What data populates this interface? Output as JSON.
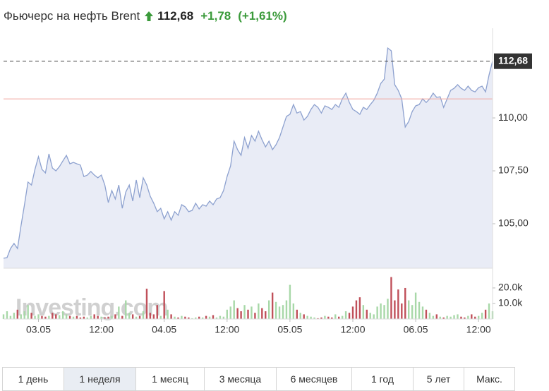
{
  "chart_data": {
    "type": "area",
    "title": "Фьючерс на нефть Brent",
    "last_price": {
      "value": 112.68,
      "label": "112,68"
    },
    "change": "+1,78",
    "change_pct": "(+1,61%)",
    "prev_close": 110.9,
    "color": "#8da1cf",
    "fill": "#e9ecf6",
    "watermark": "Investing.com",
    "xlim": [
      -400,
      5200
    ],
    "xticks": [
      {
        "value": 0,
        "label": "03.05"
      },
      {
        "value": 720,
        "label": "12:00"
      },
      {
        "value": 1440,
        "label": "04.05"
      },
      {
        "value": 2160,
        "label": "12:00"
      },
      {
        "value": 2880,
        "label": "05.05"
      },
      {
        "value": 3600,
        "label": "12:00"
      },
      {
        "value": 4320,
        "label": "06.05"
      },
      {
        "value": 5040,
        "label": "12:00"
      }
    ],
    "ylim": [
      102.9,
      114.07
    ],
    "yticks": [
      {
        "value": 105,
        "label": "105,00"
      },
      {
        "value": 107.5,
        "label": "107,50"
      },
      {
        "value": 110,
        "label": "110,00"
      }
    ],
    "x": [
      -400,
      -360,
      -320,
      -280,
      -240,
      -200,
      -160,
      -120,
      -80,
      -40,
      0,
      40,
      80,
      120,
      160,
      200,
      240,
      280,
      320,
      360,
      400,
      440,
      480,
      520,
      560,
      600,
      640,
      680,
      720,
      760,
      800,
      840,
      880,
      920,
      960,
      1000,
      1040,
      1080,
      1120,
      1160,
      1200,
      1240,
      1280,
      1320,
      1360,
      1400,
      1440,
      1480,
      1520,
      1560,
      1600,
      1640,
      1680,
      1720,
      1760,
      1800,
      1840,
      1880,
      1920,
      1960,
      2000,
      2040,
      2080,
      2120,
      2160,
      2200,
      2240,
      2280,
      2320,
      2360,
      2400,
      2440,
      2480,
      2520,
      2560,
      2600,
      2640,
      2680,
      2720,
      2760,
      2800,
      2840,
      2880,
      2920,
      2960,
      3000,
      3040,
      3080,
      3120,
      3160,
      3200,
      3240,
      3280,
      3320,
      3360,
      3400,
      3440,
      3480,
      3520,
      3560,
      3600,
      3640,
      3680,
      3720,
      3760,
      3800,
      3840,
      3880,
      3920,
      3960,
      4000,
      4040,
      4080,
      4120,
      4160,
      4200,
      4240,
      4280,
      4320,
      4360,
      4400,
      4440,
      4480,
      4520,
      4560,
      4600,
      4640,
      4680,
      4720,
      4760,
      4800,
      4840,
      4880,
      4920,
      4960,
      5000,
      5040,
      5080,
      5120,
      5160,
      5200
    ],
    "values": [
      103.37,
      103.4,
      103.83,
      104.07,
      103.83,
      104.9,
      105.9,
      106.97,
      106.83,
      107.57,
      108.17,
      107.57,
      107.4,
      108.3,
      107.63,
      107.5,
      107.7,
      107.97,
      108.23,
      107.83,
      107.9,
      107.83,
      107.77,
      107.23,
      107.3,
      107.47,
      107.3,
      107.17,
      107.3,
      106.83,
      106.0,
      106.57,
      106.17,
      106.83,
      105.73,
      106.5,
      106.83,
      106.07,
      107.07,
      106.23,
      107.17,
      106.83,
      106.3,
      105.97,
      105.57,
      105.73,
      105.23,
      105.57,
      105.17,
      105.57,
      105.4,
      105.9,
      105.8,
      105.57,
      105.63,
      105.97,
      105.7,
      105.9,
      105.83,
      106.07,
      105.9,
      106.17,
      106.23,
      106.57,
      107.23,
      107.73,
      108.9,
      108.5,
      108.23,
      109.07,
      108.57,
      109.17,
      108.9,
      109.37,
      108.97,
      108.63,
      108.9,
      108.5,
      108.73,
      109.07,
      109.57,
      110.07,
      110.17,
      110.63,
      110.23,
      110.3,
      109.9,
      110.07,
      110.4,
      110.63,
      110.5,
      110.23,
      110.57,
      110.5,
      110.4,
      110.63,
      110.5,
      110.9,
      111.17,
      110.73,
      110.4,
      110.3,
      110.17,
      110.5,
      110.4,
      110.63,
      110.83,
      111.17,
      111.63,
      111.83,
      113.3,
      113.17,
      111.57,
      111.3,
      110.9,
      109.57,
      109.83,
      110.3,
      110.57,
      110.63,
      110.9,
      110.73,
      110.9,
      111.17,
      110.97,
      111.0,
      110.5,
      110.9,
      111.3,
      111.4,
      111.57,
      111.4,
      111.3,
      111.5,
      111.3,
      111.23,
      111.43,
      111.5,
      111.23,
      112.03,
      112.68
    ],
    "volume": {
      "up_color": "#a8d8a8",
      "down_color": "#c0505a",
      "ylim": [
        0,
        32700
      ],
      "yticks": [
        {
          "value": 20000,
          "label": "20.0k"
        },
        {
          "value": 10000,
          "label": "10.0k"
        }
      ],
      "values": [
        3000,
        5000,
        2000,
        4000,
        6000,
        3000,
        5000,
        9000,
        4000,
        2000,
        3000,
        2000,
        1500,
        2000,
        4000,
        3000,
        2500,
        5000,
        3000,
        2000,
        1500,
        2000,
        1000,
        1500,
        1000,
        2000,
        3000,
        2000,
        1500,
        1000,
        1500,
        2000,
        3000,
        8000,
        2000,
        12000,
        4000,
        3000,
        1500,
        2000,
        5000,
        19500,
        4000,
        3000,
        9000,
        2000,
        18000,
        6000,
        3000,
        1500,
        1000,
        2000,
        1500,
        1000,
        500,
        1000,
        1500,
        1000,
        2000,
        1500,
        2500,
        1000,
        2000,
        1500,
        6000,
        8000,
        12000,
        7000,
        5000,
        9000,
        6000,
        8000,
        4000,
        10000,
        7000,
        5000,
        12000,
        17000,
        11000,
        8000,
        9000,
        12000,
        22000,
        10000,
        6000,
        4000,
        3000,
        2000,
        1500,
        1000,
        500,
        1000,
        2000,
        1500,
        1000,
        3000,
        1500,
        2000,
        5000,
        4000,
        8000,
        12000,
        14000,
        9000,
        6000,
        4000,
        3000,
        8000,
        10000,
        9000,
        13000,
        27000,
        12000,
        19000,
        10000,
        20000,
        12000,
        9000,
        17000,
        11000,
        8000,
        6000,
        4000,
        2000,
        3000,
        1500,
        1000,
        2000,
        1500,
        2500,
        3000,
        1500,
        1000,
        2000,
        3000,
        1500,
        2000,
        4000,
        6000,
        10000,
        5000
      ]
    }
  },
  "range_buttons": [
    "1 день",
    "1 неделя",
    "1 месяц",
    "3 месяца",
    "6 месяцев",
    "1 год",
    "5 лет",
    "Макс."
  ],
  "active_range_index": 1
}
